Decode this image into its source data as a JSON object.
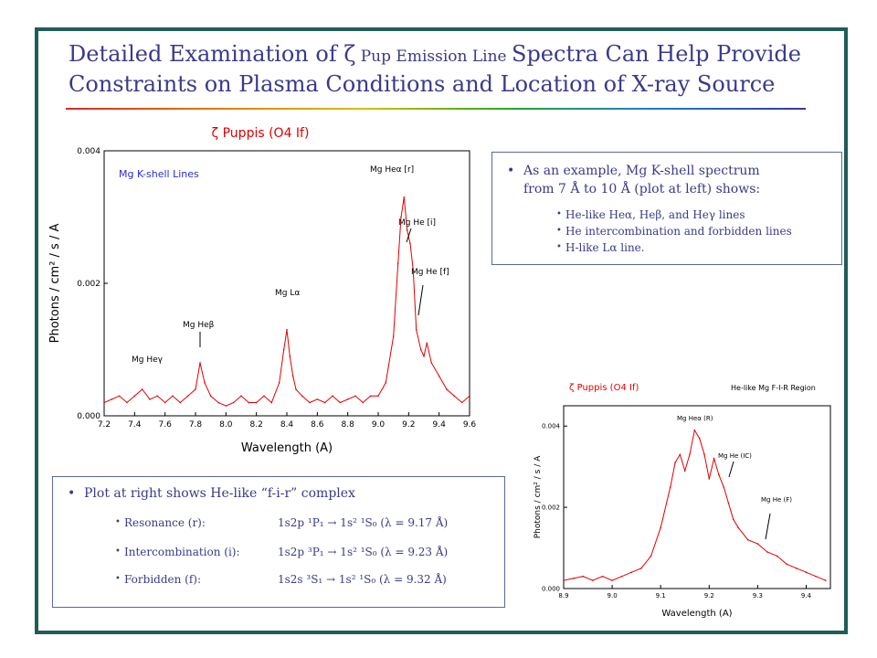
{
  "slide": {
    "title_part1": "Detailed Examination of ",
    "title_zeta": "ζ",
    "title_small": " Pup Emission Line ",
    "title_part2": "Spectra Can Help Provide",
    "title_line2": "Constraints on Plasma Conditions and Location of X-ray Source"
  },
  "box1": {
    "main_line1": "As an example, Mg K-shell spectrum",
    "main_line2": "from 7 Å to 10 Å  (plot at left) shows:",
    "items": [
      "He-like Heα, Heβ, and Heγ  lines",
      "He  intercombination and forbidden lines",
      "H-like Lα line."
    ]
  },
  "box2": {
    "main": "Plot at right shows He-like “f-i-r” complex",
    "rows": [
      {
        "label": "Resonance (r):",
        "formula": "1s2p ¹P₁ → 1s² ¹S₀ (λ = 9.17 Å)"
      },
      {
        "label": "Intercombination (i):",
        "formula": "1s2p ³P₁ → 1s² ¹S₀ (λ = 9.23 Å)"
      },
      {
        "label": "Forbidden (f):",
        "formula": "1s2s ³S₁ → 1s² ¹S₀ (λ = 9.32 Å)"
      }
    ]
  },
  "colors": {
    "title": "#3a3a8a",
    "frame": "#1f5d55",
    "series": "#e00000",
    "annotation_blue": "#2a2ad0"
  },
  "chart_data": [
    {
      "type": "line",
      "title": "ζ Puppis (O4 If)",
      "inset_label": "Mg K-shell Lines",
      "xlabel": "Wavelength (A)",
      "ylabel": "Photons / cm² / s / A",
      "xlim": [
        7.2,
        9.6
      ],
      "ylim": [
        0.0,
        0.004
      ],
      "xticks": [
        "7.2",
        "7.4",
        "7.6",
        "7.8",
        "8.0",
        "8.2",
        "8.4",
        "8.6",
        "8.8",
        "9.0",
        "9.2",
        "9.4",
        "9.6"
      ],
      "yticks": [
        "0.000",
        "0.002",
        "0.004"
      ],
      "annotations": [
        {
          "text": "Mg Heγ",
          "x": 7.45
        },
        {
          "text": "Mg Heβ",
          "x": 7.85
        },
        {
          "text": "Mg Lα",
          "x": 8.42
        },
        {
          "text": "Mg Heα [r]",
          "x": 9.17
        },
        {
          "text": "Mg He [i]",
          "x": 9.23
        },
        {
          "text": "Mg He [f]",
          "x": 9.32
        }
      ],
      "series": [
        {
          "x": [
            7.2,
            7.25,
            7.3,
            7.35,
            7.4,
            7.45,
            7.5,
            7.55,
            7.6,
            7.65,
            7.7,
            7.75,
            7.8,
            7.83,
            7.86,
            7.9,
            7.95,
            8.0,
            8.05,
            8.1,
            8.15,
            8.2,
            8.25,
            8.3,
            8.35,
            8.38,
            8.4,
            8.42,
            8.44,
            8.46,
            8.5,
            8.55,
            8.6,
            8.65,
            8.7,
            8.75,
            8.8,
            8.85,
            8.9,
            8.95,
            9.0,
            9.05,
            9.1,
            9.13,
            9.15,
            9.17,
            9.19,
            9.21,
            9.23,
            9.25,
            9.28,
            9.3,
            9.32,
            9.35,
            9.4,
            9.45,
            9.5,
            9.55,
            9.6
          ],
          "values": [
            0.0002,
            0.00025,
            0.0003,
            0.0002,
            0.0003,
            0.0004,
            0.00025,
            0.0003,
            0.0002,
            0.0003,
            0.0002,
            0.0003,
            0.0004,
            0.0008,
            0.0005,
            0.0003,
            0.0002,
            0.00015,
            0.0002,
            0.0003,
            0.0002,
            0.0002,
            0.0003,
            0.0002,
            0.0005,
            0.001,
            0.0013,
            0.0009,
            0.0006,
            0.0004,
            0.0003,
            0.0002,
            0.00025,
            0.0002,
            0.0003,
            0.0002,
            0.00025,
            0.0003,
            0.0002,
            0.0003,
            0.0003,
            0.0005,
            0.0012,
            0.0023,
            0.003,
            0.0033,
            0.0028,
            0.0026,
            0.0022,
            0.0013,
            0.001,
            0.0009,
            0.0011,
            0.0008,
            0.0006,
            0.0004,
            0.0003,
            0.0002,
            0.0003
          ]
        }
      ]
    },
    {
      "type": "line",
      "title": "ζ Puppis (O4 If)",
      "right_label": "He-like Mg F-I-R Region",
      "xlabel": "Wavelength (A)",
      "ylabel": "Photons / cm² / s / A",
      "xlim": [
        8.9,
        9.45
      ],
      "ylim": [
        0.0,
        0.0045
      ],
      "xticks": [
        "8.9",
        "9.0",
        "9.1",
        "9.2",
        "9.3",
        "9.4"
      ],
      "yticks": [
        "0.000",
        "0.002",
        "0.004"
      ],
      "annotations": [
        {
          "text": "Mg Heα (R)",
          "x": 9.17
        },
        {
          "text": "Mg He (IC)",
          "x": 9.23
        },
        {
          "text": "Mg He (F)",
          "x": 9.32
        }
      ],
      "series": [
        {
          "x": [
            8.9,
            8.92,
            8.94,
            8.96,
            8.98,
            9.0,
            9.02,
            9.04,
            9.06,
            9.08,
            9.1,
            9.12,
            9.13,
            9.14,
            9.15,
            9.16,
            9.17,
            9.18,
            9.19,
            9.2,
            9.21,
            9.22,
            9.23,
            9.24,
            9.25,
            9.26,
            9.28,
            9.3,
            9.32,
            9.34,
            9.36,
            9.38,
            9.4,
            9.42,
            9.44
          ],
          "values": [
            0.0002,
            0.00025,
            0.0003,
            0.0002,
            0.0003,
            0.0002,
            0.0003,
            0.0004,
            0.0005,
            0.0008,
            0.0015,
            0.0025,
            0.0031,
            0.0033,
            0.0029,
            0.0033,
            0.0039,
            0.0037,
            0.0033,
            0.0027,
            0.0032,
            0.0028,
            0.0025,
            0.0021,
            0.0017,
            0.0015,
            0.0012,
            0.0011,
            0.0009,
            0.0008,
            0.0006,
            0.0005,
            0.0004,
            0.0003,
            0.0002
          ]
        }
      ]
    }
  ]
}
